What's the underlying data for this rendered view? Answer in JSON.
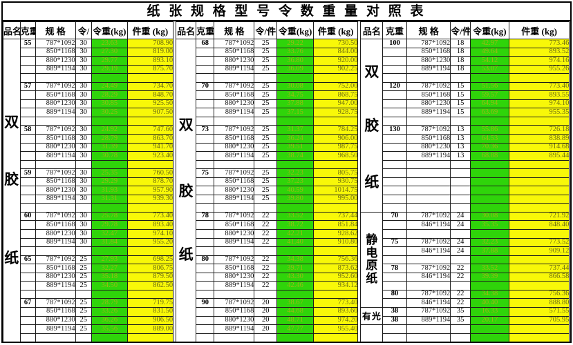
{
  "title": "纸 张 规 格 型 号 令 数 重 量 对 照 表",
  "colors": {
    "ream_weight_bg": "#2fd40a",
    "ream_weight_text": "#9cb915",
    "piece_weight_bg": "#f8f808",
    "piece_weight_text": "#6e6e12",
    "border": "#000000"
  },
  "column_semantics": [
    "品名",
    "克重",
    "规格",
    "令/件",
    "令重(kg)",
    "件重(kg)"
  ],
  "groups": [
    {
      "name": "left",
      "headers": [
        "品名",
        "克重",
        "规 格",
        "令/",
        "令重(kg)",
        "件重 (kg)"
      ],
      "name_cells": [
        {
          "chars": [
            "双",
            "胶",
            "纸"
          ],
          "span": 35,
          "style": "big",
          "positions": [
            25,
            44,
            70
          ]
        }
      ],
      "rows": [
        [
          "55",
          "787*1092",
          "30",
          "23.63",
          "708.90"
        ],
        [
          "",
          "850*1168",
          "30",
          "27.30",
          "819.00"
        ],
        [
          "",
          "880*1230",
          "30",
          "29.77",
          "893.10"
        ],
        [
          "",
          "889*1194",
          "30",
          "29.19",
          "875.70"
        ],
        [],
        [
          "57",
          "787*1092",
          "30",
          "24.49",
          "734.70"
        ],
        [
          "",
          "850*1168",
          "30",
          "28.29",
          "848.70"
        ],
        [
          "",
          "880*1230",
          "30",
          "30.85",
          "925.50"
        ],
        [
          "",
          "889*1194",
          "30",
          "30.25",
          "907.50"
        ],
        [],
        [
          "58",
          "787*1092",
          "30",
          "24.92",
          "747.60"
        ],
        [
          "",
          "850*1168",
          "30",
          "28.79",
          "863.70"
        ],
        [
          "",
          "880*1230",
          "30",
          "31.39",
          "941.70"
        ],
        [
          "",
          "889*1194",
          "30",
          "30.78",
          "923.40"
        ],
        [],
        [
          "59",
          "787*1092",
          "30",
          "25.35",
          "760.50"
        ],
        [
          "",
          "850*1168",
          "30",
          "29.29",
          "878.70"
        ],
        [
          "",
          "880*1230",
          "30",
          "31.93",
          "957.90"
        ],
        [
          "",
          "889*1194",
          "30",
          "31.31",
          "939.30"
        ],
        [],
        [
          "60",
          "787*1092",
          "30",
          "25.78",
          "773.40"
        ],
        [
          "",
          "850*1168",
          "30",
          "29.78",
          "893.40"
        ],
        [
          "",
          "880*1230",
          "30",
          "32.47",
          "974.10"
        ],
        [
          "",
          "889*1194",
          "30",
          "31.84",
          "955.20"
        ],
        [],
        [
          "65",
          "787*1092",
          "25",
          "27.93",
          "698.25"
        ],
        [
          "",
          "850*1168",
          "25",
          "32.27",
          "806.75"
        ],
        [
          "",
          "880*1230",
          "25",
          "35.18",
          "879.50"
        ],
        [
          "",
          "889*1194",
          "25",
          "34.50",
          "862.50"
        ],
        [],
        [
          "67",
          "787*1092",
          "25",
          "28.79",
          "719.75"
        ],
        [
          "",
          "850*1168",
          "25",
          "33.26",
          "831.50"
        ],
        [
          "",
          "880*1230",
          "25",
          "36.26",
          "906.50"
        ],
        [
          "",
          "889*1194",
          "25",
          "35.56",
          "889.00"
        ],
        []
      ]
    },
    {
      "name": "middle",
      "headers": [
        "品名",
        "克重",
        "规 格",
        "令/件",
        "令重(kg)",
        "件重 (kg)"
      ],
      "name_cells": [
        {
          "chars": [
            "双",
            "胶",
            "纸"
          ],
          "span": 35,
          "style": "big",
          "positions": [
            26,
            48,
            69
          ]
        }
      ],
      "rows": [
        [
          "68",
          "787*1092",
          "25",
          "29.22",
          "730.50"
        ],
        [
          "",
          "850*1168",
          "25",
          "33.76",
          "844.00"
        ],
        [
          "",
          "880*1230",
          "25",
          "36.80",
          "920.00"
        ],
        [
          "",
          "889*1194",
          "25",
          "36.09",
          "902.25"
        ],
        [],
        [
          "70",
          "787*1092",
          "25",
          "30.08",
          "752.00"
        ],
        [
          "",
          "850*1168",
          "25",
          "34.75",
          "868.75"
        ],
        [
          "",
          "880*1230",
          "25",
          "37.88",
          "947.00"
        ],
        [
          "",
          "889*1194",
          "25",
          "37.15",
          "928.75"
        ],
        [],
        [
          "73",
          "787*1092",
          "25",
          "31.37",
          "784.25"
        ],
        [
          "",
          "850*1168",
          "25",
          "36.24",
          "906.00"
        ],
        [
          "",
          "880*1230",
          "25",
          "39.51",
          "987.75"
        ],
        [
          "",
          "889*1194",
          "25",
          "38.74",
          "968.50"
        ],
        [],
        [
          "75",
          "787*1092",
          "25",
          "32.23",
          "805.75"
        ],
        [
          "",
          "850*1168",
          "25",
          "37.23",
          "930.75"
        ],
        [
          "",
          "880*1230",
          "25",
          "40.59",
          "1014.75"
        ],
        [
          "",
          "889*1194",
          "25",
          "39.80",
          "995.00"
        ],
        [],
        [
          "78",
          "787*1092",
          "22",
          "33.52",
          "737.44"
        ],
        [
          "",
          "850*1168",
          "22",
          "38.72",
          "851.84"
        ],
        [
          "",
          "880*1230",
          "22",
          "42.21",
          "928.62"
        ],
        [
          "",
          "889*1194",
          "22",
          "41.40",
          "910.80"
        ],
        [],
        [
          "80",
          "787*1092",
          "22",
          "34.38",
          "756.36"
        ],
        [
          "",
          "850*1168",
          "22",
          "39.71",
          "873.62"
        ],
        [
          "",
          "880*1230",
          "22",
          "43.30",
          "952.60"
        ],
        [
          "",
          "889*1194",
          "22",
          "42.46",
          "934.12"
        ],
        [],
        [
          "90",
          "787*1092",
          "20",
          "38.67",
          "773.40"
        ],
        [
          "",
          "850*1168",
          "20",
          "44.68",
          "893.60"
        ],
        [
          "",
          "880*1230",
          "20",
          "48.71",
          "974.20"
        ],
        [
          "",
          "889*1194",
          "20",
          "47.77",
          "955.40"
        ],
        []
      ]
    },
    {
      "name": "right",
      "headers": [
        "品名",
        "克重",
        "规 格",
        "令/件",
        "令重(kg)",
        "件重 (kg)"
      ],
      "name_cells": [
        {
          "chars": [
            "双",
            "胶",
            "纸"
          ],
          "span": 20,
          "style": "big",
          "positions": [
            15,
            46,
            79
          ]
        },
        {
          "chars": [
            "静",
            "电",
            "原",
            "纸"
          ],
          "span": 11,
          "style": "stack",
          "positions": []
        },
        {
          "chars": [
            "有",
            "光"
          ],
          "span": 2,
          "style": "inline",
          "positions": []
        },
        {
          "chars": [],
          "span": 2,
          "style": "empty",
          "positions": []
        }
      ],
      "rows": [
        [
          "100",
          "787*1092",
          "18",
          "42.97",
          "773.46"
        ],
        [
          "",
          "850*1168",
          "18",
          "49.64",
          "893.52"
        ],
        [
          "",
          "880*1230",
          "18",
          "54.12",
          "974.16"
        ],
        [
          "",
          "889*1194",
          "18",
          "53.07",
          "955.26"
        ],
        [],
        [
          "120",
          "787*1092",
          "15",
          "51.56",
          "773.40"
        ],
        [
          "",
          "850*1168",
          "15",
          "59.57",
          "893.55"
        ],
        [
          "",
          "880*1230",
          "15",
          "64.94",
          "974.10"
        ],
        [
          "",
          "889*1194",
          "15",
          "63.69",
          "955.35"
        ],
        [],
        [
          "130",
          "787*1092",
          "13",
          "55.86",
          "726.18"
        ],
        [
          "",
          "850*1168",
          "13",
          "64.53",
          "838.89"
        ],
        [
          "",
          "880*1230",
          "13",
          "70.36",
          "914.68"
        ],
        [
          "",
          "889*1194",
          "13",
          "68.88",
          "895.44"
        ],
        [],
        [],
        [],
        [],
        [],
        [],
        [
          "70",
          "787*1092",
          "24",
          "30.08",
          "721.92"
        ],
        [
          "",
          "846*1194",
          "24",
          "35.35",
          "848.40"
        ],
        [],
        [
          "75",
          "787*1092",
          "24",
          "32.23",
          "773.52"
        ],
        [
          "",
          "846*1194",
          "24",
          "37.88",
          "909.12"
        ],
        [],
        [
          "78",
          "787*1092",
          "22",
          "33.52",
          "737.44"
        ],
        [
          "",
          "846*1194",
          "22",
          "39.39",
          "866.58"
        ],
        [],
        [
          "80",
          "787*1092",
          "22",
          "34.38",
          "756.36"
        ],
        [
          "",
          "846*1194",
          "22",
          "40.40",
          "888.80"
        ],
        [
          "38",
          "787*1092",
          "35",
          "16.33",
          "571.55"
        ],
        [
          "38",
          "889*1194",
          "35",
          "20.17",
          "705.95"
        ],
        [],
        []
      ]
    }
  ]
}
